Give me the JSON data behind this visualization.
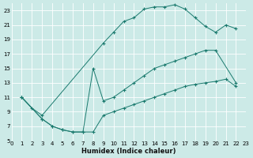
{
  "xlabel": "Humidex (Indice chaleur)",
  "bg_color": "#cceae7",
  "grid_color": "#ffffff",
  "line_color": "#1a7a6e",
  "xlim": [
    0,
    23
  ],
  "ylim": [
    5,
    24
  ],
  "xticks": [
    0,
    1,
    2,
    3,
    4,
    5,
    6,
    7,
    8,
    9,
    10,
    11,
    12,
    13,
    14,
    15,
    16,
    17,
    18,
    19,
    20,
    21,
    22,
    23
  ],
  "yticks": [
    5,
    7,
    9,
    11,
    13,
    15,
    17,
    19,
    21,
    23
  ],
  "line1_x": [
    1,
    2,
    3,
    9,
    10,
    11,
    12,
    13,
    14,
    15,
    16,
    17,
    18,
    19,
    20,
    21,
    22
  ],
  "line1_y": [
    11,
    9.5,
    8.5,
    18.5,
    20,
    21.5,
    22,
    23.2,
    23.5,
    23.5,
    23.8,
    23.2,
    22,
    20.8,
    20,
    21,
    20.5
  ],
  "line2_x": [
    1,
    3,
    4,
    5,
    6,
    7,
    8,
    9,
    10,
    11,
    12,
    13,
    14,
    15,
    16,
    17,
    18,
    19,
    20,
    22
  ],
  "line2_y": [
    11,
    8,
    7,
    6.5,
    6.2,
    6.2,
    15,
    10.5,
    11,
    12,
    13,
    14,
    15,
    15.5,
    16,
    16.5,
    17,
    17.5,
    17.5,
    13
  ],
  "line3_x": [
    1,
    3,
    4,
    5,
    6,
    7,
    8,
    9,
    10,
    11,
    12,
    13,
    14,
    15,
    16,
    17,
    18,
    19,
    20,
    21,
    22
  ],
  "line3_y": [
    11,
    8,
    7,
    6.5,
    6.2,
    6.2,
    6.2,
    8.5,
    9,
    9.5,
    10,
    10.5,
    11,
    11.5,
    12,
    12.5,
    12.8,
    13,
    13.2,
    13.5,
    12.5
  ],
  "xlabel_fontsize": 6,
  "tick_fontsize": 5,
  "figsize": [
    3.2,
    2.0
  ],
  "dpi": 100
}
